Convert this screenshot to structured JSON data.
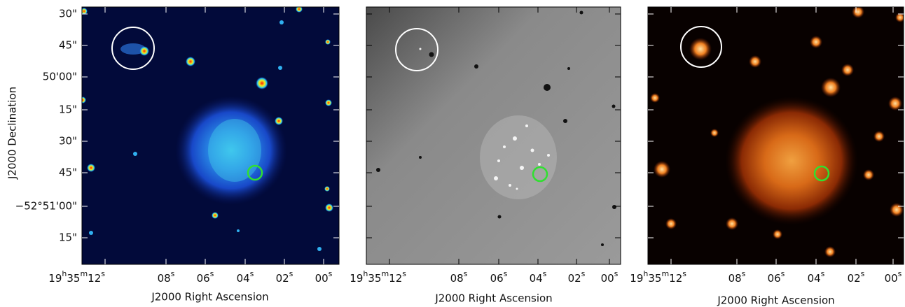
{
  "y_axis": {
    "label": "J2000 Declination",
    "ticks": [
      "30\"",
      "45\"",
      "50'00\"",
      "15\"",
      "30\"",
      "45\"",
      "−52°51'00\"",
      "15\""
    ]
  },
  "panels": [
    {
      "x_axis": {
        "label": "J2000 Right Ascension",
        "ticks": [
          [
            "19",
            "h",
            "35",
            "m",
            "12",
            "s"
          ],
          [
            "08",
            "s"
          ],
          [
            "06",
            "s"
          ],
          [
            "04",
            "s"
          ],
          [
            "02",
            "s"
          ],
          [
            "00",
            "s"
          ]
        ]
      }
    },
    {
      "x_axis": {
        "label": "J2000 Right Ascension",
        "ticks": [
          [
            "19",
            "h",
            "35",
            "m",
            "12",
            "s"
          ],
          [
            "08",
            "s"
          ],
          [
            "06",
            "s"
          ],
          [
            "04",
            "s"
          ],
          [
            "02",
            "s"
          ],
          [
            "00",
            "s"
          ]
        ]
      }
    },
    {
      "x_axis": {
        "label": "J2000 Right Ascension",
        "ticks": [
          [
            "19",
            "h",
            "35",
            "m",
            "12",
            "s"
          ],
          [
            "08",
            "s"
          ],
          [
            "06",
            "s"
          ],
          [
            "04",
            "s"
          ],
          [
            "02",
            "s"
          ],
          [
            "00",
            "s"
          ]
        ]
      }
    }
  ]
}
